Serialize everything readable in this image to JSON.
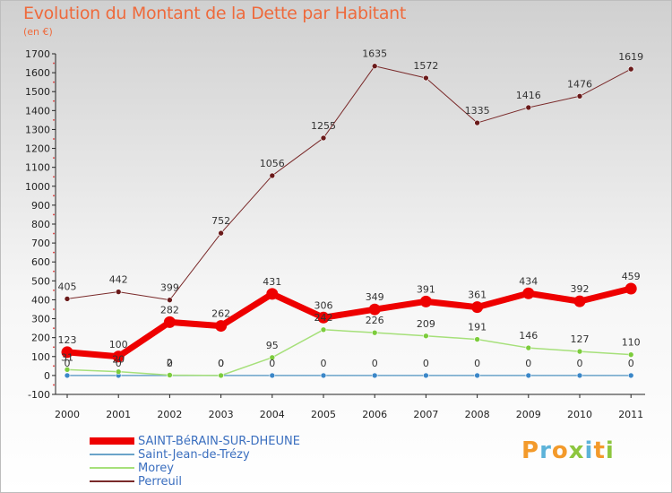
{
  "title": "Evolution du Montant de la Dette par Habitant",
  "subtitle": "(en €)",
  "brand": "Proxiti",
  "brand_colors": [
    "#f39a2b",
    "#5db3d9",
    "#f39a2b",
    "#8dc63f",
    "#5db3d9",
    "#f39a2b",
    "#8dc63f"
  ],
  "chart_data": {
    "type": "line",
    "x": [
      "2000",
      "2001",
      "2002",
      "2003",
      "2004",
      "2005",
      "2006",
      "2007",
      "2008",
      "2009",
      "2010",
      "2011"
    ],
    "ylim": [
      -100,
      1700
    ],
    "yticks": [
      -100,
      0,
      100,
      200,
      300,
      400,
      500,
      600,
      700,
      800,
      900,
      1000,
      1100,
      1200,
      1300,
      1400,
      1500,
      1600,
      1700
    ],
    "grid": false,
    "legend_position": "bottom-left",
    "series": [
      {
        "name": "SAINT-BéRAIN-SUR-DHEUNE",
        "color": "#ee0000",
        "marker": "#ee0000",
        "values": [
          123,
          100,
          282,
          262,
          431,
          306,
          349,
          391,
          361,
          434,
          392,
          459
        ],
        "labels": [
          "123",
          "100",
          "282",
          "262",
          "431",
          "306",
          "349",
          "391",
          "361",
          "434",
          "392",
          "459"
        ]
      },
      {
        "name": "Saint-Jean-de-Trézy",
        "color": "#6aa3c9",
        "marker": "#3b87c8",
        "values": [
          0,
          0,
          0,
          0,
          0,
          0,
          0,
          0,
          0,
          0,
          0,
          0
        ],
        "labels": [
          "0",
          "0",
          "0",
          "0",
          "0",
          "0",
          "0",
          "0",
          "0",
          "0",
          "0",
          "0"
        ]
      },
      {
        "name": "Morey",
        "color": "#a6e07a",
        "marker": "#7ccc3c",
        "values": [
          31,
          20,
          2,
          0,
          95,
          242,
          226,
          209,
          191,
          146,
          127,
          110
        ],
        "labels": [
          "31",
          "20",
          "2",
          "0",
          "95",
          "242",
          "226",
          "209",
          "191",
          "146",
          "127",
          "110"
        ]
      },
      {
        "name": "Perreuil",
        "color": "#7a2a2a",
        "marker": "#6a1a1a",
        "values": [
          405,
          442,
          399,
          752,
          1056,
          1255,
          1635,
          1572,
          1335,
          1416,
          1476,
          1619
        ],
        "labels": [
          "405",
          "442",
          "399",
          "752",
          "1056",
          "1255",
          "1635",
          "1572",
          "1335",
          "1416",
          "1476",
          "1619"
        ]
      }
    ]
  }
}
